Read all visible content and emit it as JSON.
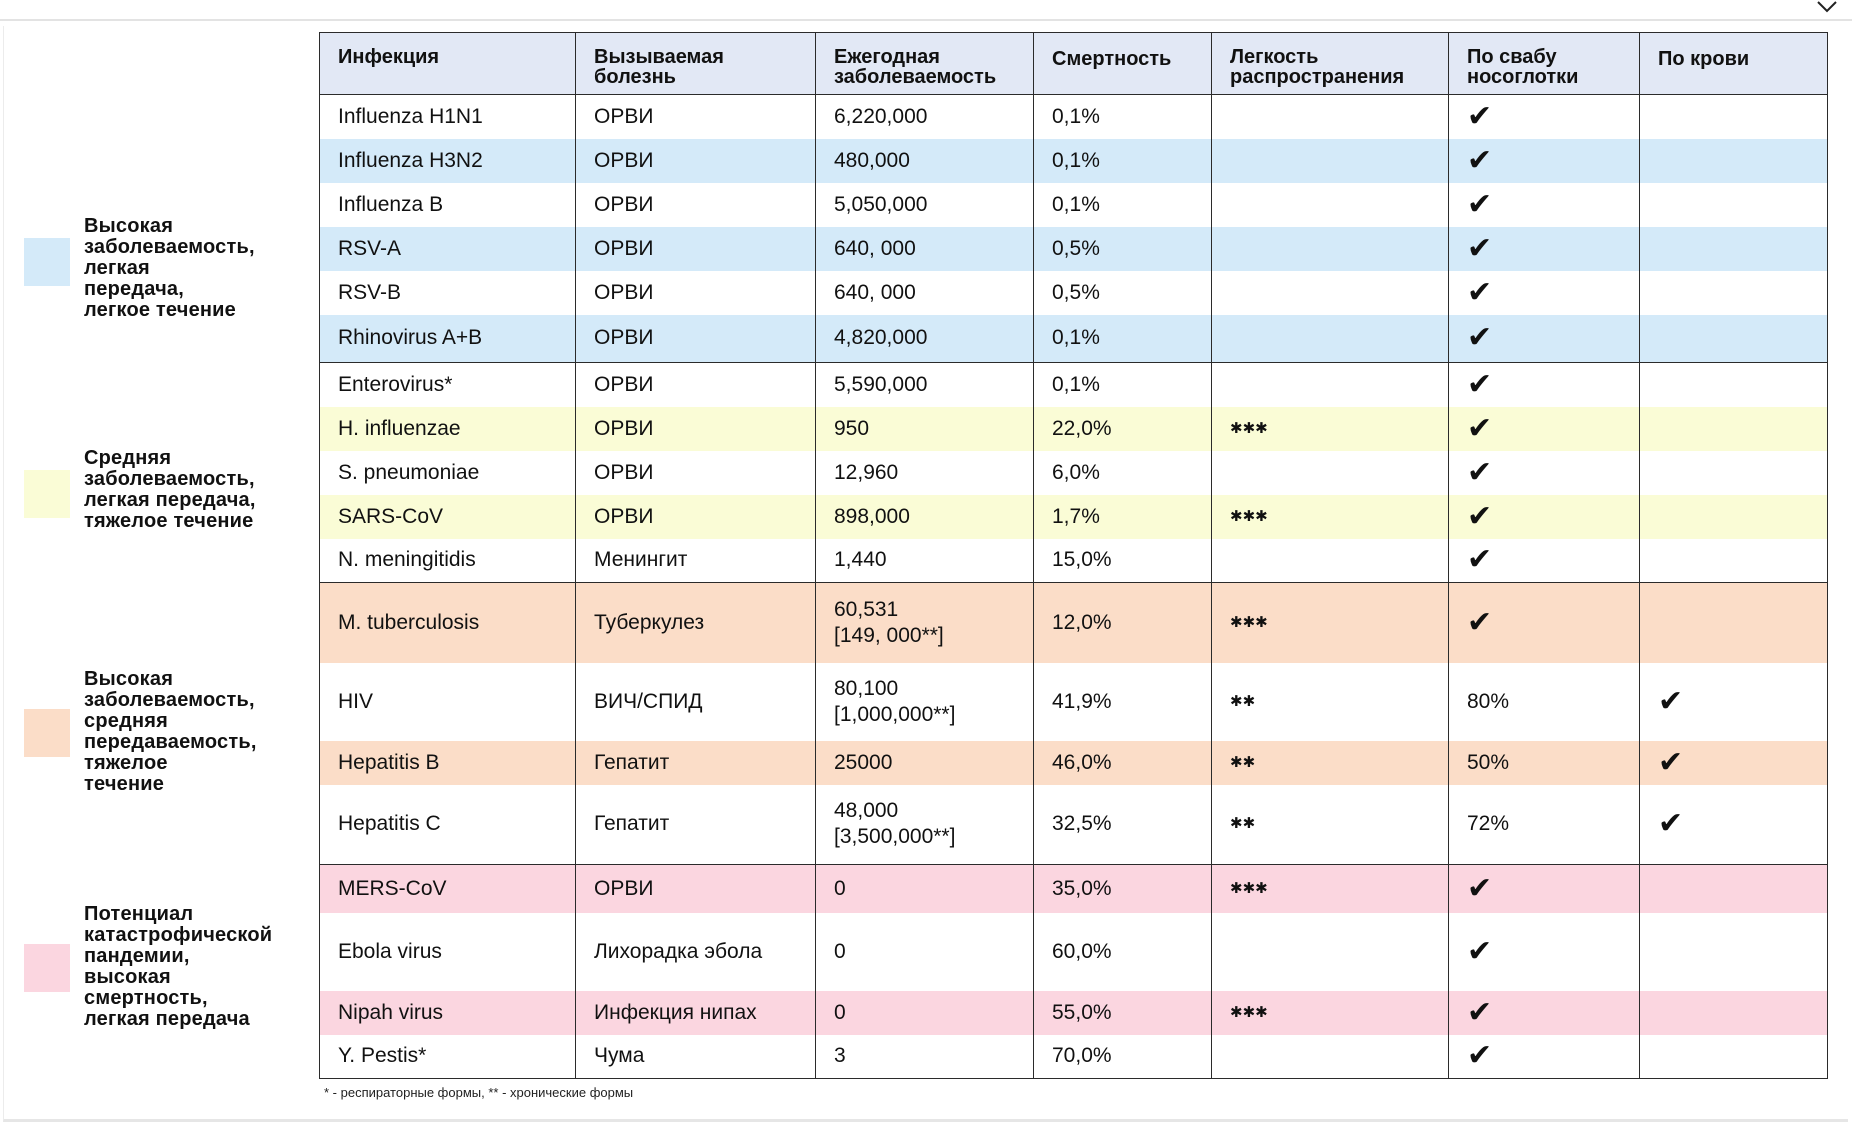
{
  "headers": {
    "infection": "Инфекция",
    "disease": "Вызываемая\nболезнь",
    "incidence": "Ежегодная\nзаболеваемость",
    "mortality": "Смертность",
    "spread": "Легкость\nраспространения",
    "swab": "По свабу\nносоглотки",
    "blood": "По крови"
  },
  "legend": [
    {
      "text": "Высокая\nзаболеваемость,\nлегкая\nпередача,\nлегкое течение",
      "color": "#d4eaf9"
    },
    {
      "text": "Средняя\nзаболеваемость,\nлегкая передача,\nтяжелое течение",
      "color": "#fafcd6"
    },
    {
      "text": "Высокая\nзаболеваемость,\nсредняя\nпередаваемость,\nтяжелое\nтечение",
      "color": "#fbddc8"
    },
    {
      "text": "Потенциал\nкатастрофической\nпандемии,\nвысокая\nсмертность,\nлегкая передача",
      "color": "#fbd6e0"
    }
  ],
  "icons": {
    "check": "checkmark-icon",
    "spread_marker": "asterisk-cluster-icon"
  },
  "rows": [
    {
      "infection": "Influenza H1N1",
      "disease": "ОРВИ",
      "incidence": "6,220,000",
      "mortality": "0,1%",
      "spread": "",
      "swab": "✔",
      "blood": ""
    },
    {
      "infection": "Influenza H3N2",
      "disease": "ОРВИ",
      "incidence": "480,000",
      "mortality": "0,1%",
      "spread": "",
      "swab": "✔",
      "blood": ""
    },
    {
      "infection": "Influenza B",
      "disease": "ОРВИ",
      "incidence": "5,050,000",
      "mortality": "0,1%",
      "spread": "",
      "swab": "✔",
      "blood": ""
    },
    {
      "infection": "RSV-A",
      "disease": "ОРВИ",
      "incidence": "640, 000",
      "mortality": "0,5%",
      "spread": "",
      "swab": "✔",
      "blood": ""
    },
    {
      "infection": "RSV-B",
      "disease": "ОРВИ",
      "incidence": "640, 000",
      "mortality": "0,5%",
      "spread": "",
      "swab": "✔",
      "blood": ""
    },
    {
      "infection": "Rhinovirus A+B",
      "disease": "ОРВИ",
      "incidence": "4,820,000",
      "mortality": "0,1%",
      "spread": "",
      "swab": "✔",
      "blood": ""
    },
    {
      "infection": "Enterovirus*",
      "disease": "ОРВИ",
      "incidence": "5,590,000",
      "mortality": "0,1%",
      "spread": "",
      "swab": "✔",
      "blood": ""
    },
    {
      "infection": "H. influenzae",
      "disease": "ОРВИ",
      "incidence": "950",
      "mortality": "22,0%",
      "spread": "✱✱✱",
      "swab": "✔",
      "blood": ""
    },
    {
      "infection": "S. pneumoniae",
      "disease": "ОРВИ",
      "incidence": "12,960",
      "mortality": "6,0%",
      "spread": "",
      "swab": "✔",
      "blood": ""
    },
    {
      "infection": "SARS-CoV",
      "disease": "ОРВИ",
      "incidence": "898,000",
      "mortality": "1,7%",
      "spread": "✱✱✱",
      "swab": "✔",
      "blood": ""
    },
    {
      "infection": "N. meningitidis",
      "disease": "Менингит",
      "incidence": "1,440",
      "mortality": "15,0%",
      "spread": "",
      "swab": "✔",
      "blood": ""
    },
    {
      "infection": "M. tuberculosis",
      "disease": "Туберкулез",
      "incidence": "60,531\n[149, 000**]",
      "mortality": "12,0%",
      "spread": "✱✱✱",
      "swab": "✔",
      "blood": ""
    },
    {
      "infection": "HIV",
      "disease": "ВИЧ/СПИД",
      "incidence": "80,100\n[1,000,000**]",
      "mortality": "41,9%",
      "spread": "✱✱",
      "swab": "80%",
      "blood": "✔"
    },
    {
      "infection": "Hepatitis B",
      "disease": "Гепатит",
      "incidence": "25000",
      "mortality": "46,0%",
      "spread": "✱✱",
      "swab": "50%",
      "blood": "✔"
    },
    {
      "infection": "Hepatitis C",
      "disease": "Гепатит",
      "incidence": "48,000\n[3,500,000**]",
      "mortality": "32,5%",
      "spread": "✱✱",
      "swab": "72%",
      "blood": "✔"
    },
    {
      "infection": "MERS-CoV",
      "disease": "ОРВИ",
      "incidence": "0",
      "mortality": "35,0%",
      "spread": "✱✱✱",
      "swab": "✔",
      "blood": ""
    },
    {
      "infection": "Ebola virus",
      "disease": "Лихорадка эбола",
      "incidence": "0",
      "mortality": "60,0%",
      "spread": "",
      "swab": "✔",
      "blood": ""
    },
    {
      "infection": "Nipah virus",
      "disease": "Инфекция нипах",
      "incidence": "0",
      "mortality": "55,0%",
      "spread": "✱✱✱",
      "swab": "✔",
      "blood": ""
    },
    {
      "infection": "Y. Pestis*",
      "disease": "Чума",
      "incidence": "3",
      "mortality": "70,0%",
      "spread": "",
      "swab": "✔",
      "blood": ""
    }
  ],
  "footnote": "* - респираторные формы, ** - хронические формы"
}
